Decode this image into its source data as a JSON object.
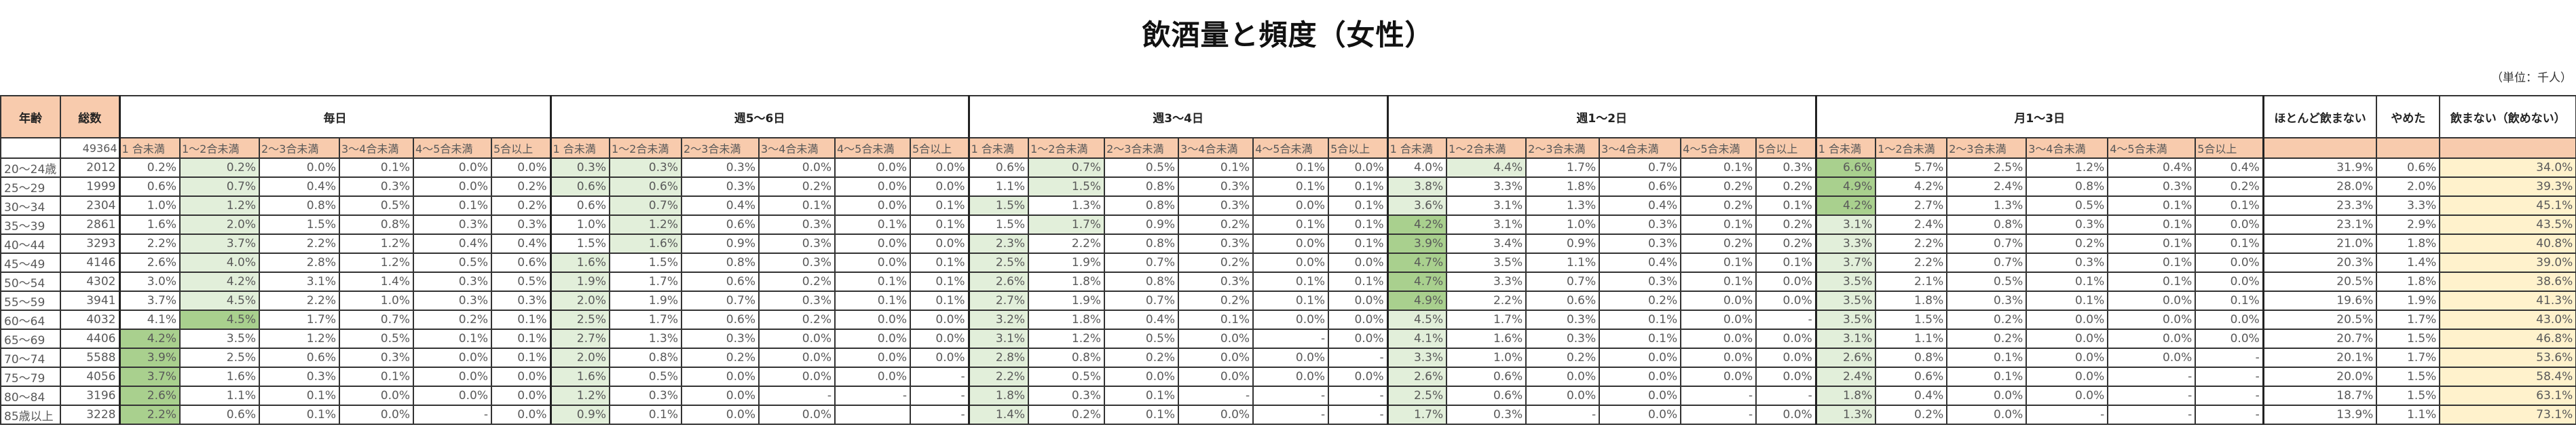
{
  "title": "飲酒量と頻度（女性）",
  "unit_note": "（単位：千人）",
  "headers": {
    "age": "年齢",
    "total": "総数",
    "groups": [
      "毎日",
      "週5～6日",
      "週3～4日",
      "週1～2日",
      "月1～3日"
    ],
    "extra": [
      "ほとんど飲まない",
      "やめた",
      "飲まない（飲めない）"
    ],
    "sub": [
      "1 合未満",
      "1～2合未満",
      "2～3合未満",
      "3～4合未満",
      "4～5合未満",
      "5合以上"
    ]
  },
  "grand_total": "49364",
  "colors": {
    "header": "#F8CBAD",
    "highlight_light": "#E2EFDA",
    "highlight_dark": "#A9D08E",
    "non_drinker": "#FFF2CC"
  },
  "rows": [
    {
      "age": "20～24歳",
      "total": "2012",
      "cells": [
        "0.2%",
        "0.2%",
        "0.0%",
        "0.1%",
        "0.0%",
        "0.0%",
        "0.3%",
        "0.3%",
        "0.3%",
        "0.0%",
        "0.0%",
        "0.0%",
        "0.6%",
        "0.7%",
        "0.5%",
        "0.1%",
        "0.1%",
        "0.0%",
        "4.0%",
        "4.4%",
        "1.7%",
        "0.7%",
        "0.1%",
        "0.3%",
        "6.6%",
        "5.7%",
        "2.5%",
        "1.2%",
        "0.4%",
        "0.4%",
        "31.9%",
        "0.6%",
        "34.0%"
      ],
      "hl": {
        "1": "L",
        "6": "L",
        "7": "L",
        "13": "L",
        "19": "L",
        "24": "D"
      }
    },
    {
      "age": "25～29",
      "total": "1999",
      "cells": [
        "0.6%",
        "0.7%",
        "0.4%",
        "0.3%",
        "0.0%",
        "0.2%",
        "0.6%",
        "0.6%",
        "0.3%",
        "0.2%",
        "0.0%",
        "0.0%",
        "1.1%",
        "1.5%",
        "0.8%",
        "0.3%",
        "0.1%",
        "0.1%",
        "3.8%",
        "3.3%",
        "1.8%",
        "0.6%",
        "0.2%",
        "0.2%",
        "4.9%",
        "4.2%",
        "2.4%",
        "0.8%",
        "0.3%",
        "0.2%",
        "28.0%",
        "2.0%",
        "39.3%"
      ],
      "hl": {
        "1": "L",
        "6": "L",
        "7": "L",
        "13": "L",
        "18": "L",
        "24": "D"
      }
    },
    {
      "age": "30～34",
      "total": "2304",
      "cells": [
        "1.0%",
        "1.2%",
        "0.8%",
        "0.5%",
        "0.1%",
        "0.2%",
        "0.6%",
        "0.7%",
        "0.4%",
        "0.1%",
        "0.0%",
        "0.1%",
        "1.5%",
        "1.3%",
        "0.8%",
        "0.3%",
        "0.0%",
        "0.1%",
        "3.6%",
        "3.1%",
        "1.3%",
        "0.4%",
        "0.2%",
        "0.1%",
        "4.2%",
        "2.7%",
        "1.3%",
        "0.5%",
        "0.1%",
        "0.1%",
        "23.3%",
        "3.3%",
        "45.1%"
      ],
      "hl": {
        "1": "L",
        "7": "L",
        "12": "L",
        "18": "L",
        "24": "D"
      }
    },
    {
      "age": "35～39",
      "total": "2861",
      "cells": [
        "1.6%",
        "2.0%",
        "1.5%",
        "0.8%",
        "0.3%",
        "0.3%",
        "1.0%",
        "1.2%",
        "0.6%",
        "0.3%",
        "0.1%",
        "0.1%",
        "1.5%",
        "1.7%",
        "0.9%",
        "0.2%",
        "0.1%",
        "0.1%",
        "4.2%",
        "3.1%",
        "1.0%",
        "0.3%",
        "0.1%",
        "0.2%",
        "3.1%",
        "2.4%",
        "0.8%",
        "0.3%",
        "0.1%",
        "0.0%",
        "23.1%",
        "2.9%",
        "43.5%"
      ],
      "hl": {
        "1": "L",
        "7": "L",
        "13": "L",
        "18": "D",
        "24": "L"
      }
    },
    {
      "age": "40～44",
      "total": "3293",
      "cells": [
        "2.2%",
        "3.7%",
        "2.2%",
        "1.2%",
        "0.4%",
        "0.4%",
        "1.5%",
        "1.6%",
        "0.9%",
        "0.3%",
        "0.0%",
        "0.0%",
        "2.3%",
        "2.2%",
        "0.8%",
        "0.3%",
        "0.0%",
        "0.1%",
        "3.9%",
        "3.4%",
        "0.9%",
        "0.3%",
        "0.2%",
        "0.2%",
        "3.3%",
        "2.2%",
        "0.7%",
        "0.2%",
        "0.1%",
        "0.1%",
        "21.0%",
        "1.8%",
        "40.8%"
      ],
      "hl": {
        "1": "L",
        "7": "L",
        "12": "L",
        "18": "D",
        "24": "L"
      }
    },
    {
      "age": "45～49",
      "total": "4146",
      "cells": [
        "2.6%",
        "4.0%",
        "2.8%",
        "1.2%",
        "0.5%",
        "0.6%",
        "1.6%",
        "1.5%",
        "0.8%",
        "0.3%",
        "0.0%",
        "0.1%",
        "2.5%",
        "1.9%",
        "0.7%",
        "0.2%",
        "0.0%",
        "0.0%",
        "4.7%",
        "3.5%",
        "1.1%",
        "0.4%",
        "0.1%",
        "0.1%",
        "3.7%",
        "2.2%",
        "0.7%",
        "0.3%",
        "0.1%",
        "0.0%",
        "20.3%",
        "1.4%",
        "39.0%"
      ],
      "hl": {
        "1": "L",
        "6": "L",
        "12": "L",
        "18": "D",
        "24": "L"
      }
    },
    {
      "age": "50～54",
      "total": "4302",
      "cells": [
        "3.0%",
        "4.2%",
        "3.1%",
        "1.4%",
        "0.3%",
        "0.5%",
        "1.9%",
        "1.7%",
        "0.6%",
        "0.2%",
        "0.1%",
        "0.1%",
        "2.6%",
        "1.8%",
        "0.8%",
        "0.3%",
        "0.1%",
        "0.1%",
        "4.7%",
        "3.3%",
        "0.7%",
        "0.3%",
        "0.1%",
        "0.0%",
        "3.5%",
        "2.1%",
        "0.5%",
        "0.1%",
        "0.1%",
        "0.0%",
        "20.5%",
        "1.8%",
        "38.6%"
      ],
      "hl": {
        "1": "L",
        "6": "L",
        "12": "L",
        "18": "D",
        "24": "L"
      }
    },
    {
      "age": "55～59",
      "total": "3941",
      "cells": [
        "3.7%",
        "4.5%",
        "2.2%",
        "1.0%",
        "0.3%",
        "0.3%",
        "2.0%",
        "1.9%",
        "0.7%",
        "0.3%",
        "0.1%",
        "0.1%",
        "2.7%",
        "1.9%",
        "0.7%",
        "0.2%",
        "0.1%",
        "0.0%",
        "4.9%",
        "2.2%",
        "0.6%",
        "0.2%",
        "0.0%",
        "0.0%",
        "3.5%",
        "1.8%",
        "0.3%",
        "0.1%",
        "0.0%",
        "0.1%",
        "19.6%",
        "1.9%",
        "41.3%"
      ],
      "hl": {
        "1": "L",
        "6": "L",
        "12": "L",
        "18": "D",
        "24": "L"
      }
    },
    {
      "age": "60～64",
      "total": "4032",
      "cells": [
        "4.1%",
        "4.5%",
        "1.7%",
        "0.7%",
        "0.2%",
        "0.1%",
        "2.5%",
        "1.7%",
        "0.6%",
        "0.2%",
        "0.0%",
        "0.0%",
        "3.2%",
        "1.8%",
        "0.4%",
        "0.1%",
        "0.0%",
        "0.0%",
        "4.5%",
        "1.7%",
        "0.3%",
        "0.1%",
        "0.0%",
        "-",
        "3.5%",
        "1.5%",
        "0.2%",
        "0.0%",
        "0.0%",
        "0.0%",
        "20.5%",
        "1.7%",
        "43.0%"
      ],
      "hl": {
        "1": "D",
        "6": "L",
        "12": "L",
        "18": "L",
        "24": "L"
      }
    },
    {
      "age": "65～69",
      "total": "4406",
      "cells": [
        "4.2%",
        "3.5%",
        "1.2%",
        "0.5%",
        "0.1%",
        "0.1%",
        "2.7%",
        "1.3%",
        "0.3%",
        "0.0%",
        "0.0%",
        "0.0%",
        "3.1%",
        "1.2%",
        "0.5%",
        "0.0%",
        "-",
        "0.0%",
        "4.1%",
        "1.6%",
        "0.3%",
        "0.1%",
        "0.0%",
        "0.0%",
        "3.1%",
        "1.1%",
        "0.2%",
        "0.0%",
        "0.0%",
        "0.0%",
        "20.7%",
        "1.5%",
        "46.8%"
      ],
      "hl": {
        "0": "D",
        "6": "L",
        "12": "L",
        "18": "L",
        "24": "L"
      }
    },
    {
      "age": "70～74",
      "total": "5588",
      "cells": [
        "3.9%",
        "2.5%",
        "0.6%",
        "0.3%",
        "0.0%",
        "0.1%",
        "2.0%",
        "0.8%",
        "0.2%",
        "0.0%",
        "0.0%",
        "0.0%",
        "2.8%",
        "0.8%",
        "0.2%",
        "0.0%",
        "0.0%",
        "-",
        "3.3%",
        "1.0%",
        "0.2%",
        "0.0%",
        "0.0%",
        "0.0%",
        "2.6%",
        "0.8%",
        "0.1%",
        "0.0%",
        "0.0%",
        "-",
        "20.1%",
        "1.7%",
        "53.6%"
      ],
      "hl": {
        "0": "D",
        "6": "L",
        "12": "L",
        "18": "L",
        "24": "L"
      }
    },
    {
      "age": "75～79",
      "total": "4056",
      "cells": [
        "3.7%",
        "1.6%",
        "0.3%",
        "0.1%",
        "0.0%",
        "0.0%",
        "1.6%",
        "0.5%",
        "0.0%",
        "0.0%",
        "0.0%",
        "-",
        "2.2%",
        "0.5%",
        "0.0%",
        "0.0%",
        "0.0%",
        "0.0%",
        "2.6%",
        "0.6%",
        "0.0%",
        "0.0%",
        "0.0%",
        "0.0%",
        "2.4%",
        "0.6%",
        "0.1%",
        "0.0%",
        "-",
        "-",
        "20.0%",
        "1.5%",
        "58.4%"
      ],
      "hl": {
        "0": "D",
        "6": "L",
        "12": "L",
        "18": "L",
        "24": "L"
      }
    },
    {
      "age": "80～84",
      "total": "3196",
      "cells": [
        "2.6%",
        "1.1%",
        "0.1%",
        "0.0%",
        "0.0%",
        "0.0%",
        "1.2%",
        "0.3%",
        "0.0%",
        "-",
        "-",
        "-",
        "1.8%",
        "0.3%",
        "0.1%",
        "-",
        "-",
        "-",
        "2.5%",
        "0.6%",
        "0.0%",
        "0.0%",
        "-",
        "-",
        "1.8%",
        "0.4%",
        "0.0%",
        "0.0%",
        "-",
        "-",
        "18.7%",
        "1.5%",
        "63.1%"
      ],
      "hl": {
        "0": "D",
        "6": "L",
        "12": "L",
        "18": "L",
        "24": "L"
      }
    },
    {
      "age": "85歳以上",
      "total": "3228",
      "cells": [
        "2.2%",
        "0.6%",
        "0.1%",
        "0.0%",
        "-",
        "0.0%",
        "0.9%",
        "0.1%",
        "0.0%",
        "0.0%",
        "",
        "-",
        "1.4%",
        "0.2%",
        "0.1%",
        "0.0%",
        "-",
        "-",
        "1.7%",
        "0.3%",
        "-",
        "0.0%",
        "-",
        "0.0%",
        "1.3%",
        "0.2%",
        "0.0%",
        "-",
        "-",
        "-",
        "13.9%",
        "1.1%",
        "73.1%"
      ],
      "hl": {
        "0": "D",
        "6": "L",
        "12": "L",
        "18": "L",
        "24": "L"
      }
    }
  ]
}
